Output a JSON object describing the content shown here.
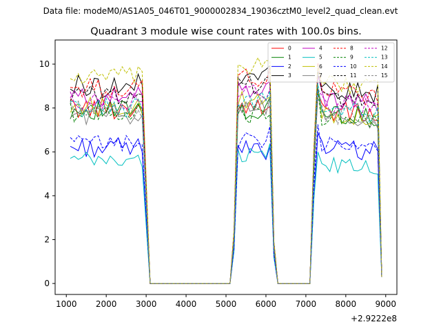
{
  "chart_data": {
    "type": "line",
    "suptitle": "Data file: modeM0/AS1A05_046T01_9000002834_19036cztM0_level2_quad_clean.evt",
    "title": "Quadrant 3 module wise count rates with 100.0s bins.",
    "xlabel": "",
    "ylabel": "",
    "x_offset_label": "+2.9222e8",
    "xlim": [
      720,
      9280
    ],
    "ylim": [
      -0.5,
      11.1
    ],
    "xticks": [
      1000,
      2000,
      3000,
      4000,
      5000,
      6000,
      7000,
      8000,
      9000
    ],
    "yticks": [
      0,
      2,
      4,
      6,
      8,
      10
    ],
    "legend_position": "top-right",
    "legend_columns": 4,
    "segments": [
      {
        "start": 1100,
        "n": 19
      },
      {
        "start": 3100,
        "n": 21
      },
      {
        "start": 5200,
        "n": 10
      },
      {
        "start": 6200,
        "n": 10
      },
      {
        "start": 7200,
        "n": 18
      }
    ],
    "series": [
      {
        "name": "0",
        "color": "#ff0000",
        "dash": "solid",
        "g1": 8.0,
        "g2": 8.2,
        "g3": 7.9,
        "a": 0.5
      },
      {
        "name": "1",
        "color": "#008000",
        "dash": "solid",
        "g1": 7.9,
        "g2": 7.8,
        "g3": 7.8,
        "a": 0.45
      },
      {
        "name": "2",
        "color": "#0000ff",
        "dash": "solid",
        "g1": 6.2,
        "g2": 6.1,
        "g3": 6.2,
        "a": 0.45
      },
      {
        "name": "3",
        "color": "#000000",
        "dash": "solid",
        "g1": 9.0,
        "g2": 9.5,
        "g3": 8.9,
        "a": 0.55
      },
      {
        "name": "4",
        "color": "#bf00bf",
        "dash": "solid",
        "g1": 8.5,
        "g2": 8.8,
        "g3": 8.4,
        "a": 0.45
      },
      {
        "name": "5",
        "color": "#00bfbf",
        "dash": "solid",
        "g1": 5.6,
        "g2": 5.9,
        "g3": 5.4,
        "a": 0.4
      },
      {
        "name": "6",
        "color": "#bfbf00",
        "dash": "solid",
        "g1": 8.1,
        "g2": 8.3,
        "g3": 7.8,
        "a": 0.45
      },
      {
        "name": "7",
        "color": "#808080",
        "dash": "solid",
        "g1": 7.7,
        "g2": 7.9,
        "g3": 7.6,
        "a": 0.45
      },
      {
        "name": "8",
        "color": "#ff0000",
        "dash": "dashed",
        "g1": 8.9,
        "g2": 9.4,
        "g3": 8.8,
        "a": 0.45
      },
      {
        "name": "9",
        "color": "#008000",
        "dash": "dashed",
        "g1": 7.8,
        "g2": 7.7,
        "g3": 7.6,
        "a": 0.45
      },
      {
        "name": "10",
        "color": "#0000ff",
        "dash": "dashed",
        "g1": 6.4,
        "g2": 6.5,
        "g3": 6.3,
        "a": 0.4
      },
      {
        "name": "11",
        "color": "#000000",
        "dash": "dashed",
        "g1": 8.6,
        "g2": 9.0,
        "g3": 8.5,
        "a": 0.45
      },
      {
        "name": "12",
        "color": "#bf00bf",
        "dash": "dashed",
        "g1": 8.3,
        "g2": 8.6,
        "g3": 8.2,
        "a": 0.45
      },
      {
        "name": "13",
        "color": "#00bfbf",
        "dash": "dashed",
        "g1": 8.0,
        "g2": 8.3,
        "g3": 7.9,
        "a": 0.45
      },
      {
        "name": "14",
        "color": "#bfbf00",
        "dash": "dashed",
        "g1": 9.4,
        "g2": 9.8,
        "g3": 9.2,
        "a": 0.5
      },
      {
        "name": "15",
        "color": "#808080",
        "dash": "dashed",
        "g1": 7.9,
        "g2": 8.1,
        "g3": 7.7,
        "a": 0.45
      }
    ]
  }
}
